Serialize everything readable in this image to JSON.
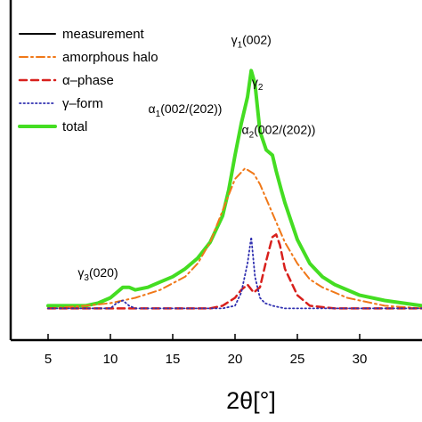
{
  "chart_data": {
    "type": "line",
    "xlabel": "2θ[°]",
    "ylabel": "",
    "xlim": [
      2,
      35
    ],
    "ylim": [
      -0.12,
      1.1
    ],
    "xticks": [
      5,
      10,
      15,
      20,
      25,
      30
    ],
    "xtick_labels": [
      "5",
      "10",
      "15",
      "20",
      "25",
      "30"
    ],
    "grid": false,
    "legend_position": "top-left",
    "legend": [
      {
        "label": "measurement",
        "color": "#000000",
        "style": "solid"
      },
      {
        "label": "amorphous halo",
        "color": "#f07818",
        "style": "dashdot"
      },
      {
        "label": "α–phase",
        "color": "#d8201c",
        "style": "dashed"
      },
      {
        "label": "γ–form",
        "color": "#3030b0",
        "style": "dotted"
      },
      {
        "label": "total",
        "color": "#44dd22",
        "style": "solid"
      }
    ],
    "annotations": [
      {
        "text": "γ1(002)",
        "main": "γ",
        "sub": "1",
        "rest": "(002)",
        "x": 21.3,
        "y": 1.0
      },
      {
        "text": "γ2",
        "main": "γ",
        "sub": "2",
        "rest": "",
        "x": 21.8,
        "y": 0.84
      },
      {
        "text": "α1(002/(202))",
        "main": "α",
        "sub": "1",
        "rest": "(002/(202))",
        "x": 16.0,
        "y": 0.74
      },
      {
        "text": "α2(002/(202))",
        "main": "α",
        "sub": "2",
        "rest": "(002/(202))",
        "x": 23.5,
        "y": 0.66
      },
      {
        "text": "γ3(020)",
        "main": "γ",
        "sub": "3",
        "rest": "(020)",
        "x": 9.0,
        "y": 0.12
      }
    ],
    "series": [
      {
        "name": "measurement",
        "x": [
          5,
          8,
          9,
          10,
          10.5,
          11,
          11.5,
          12,
          13,
          14,
          15,
          16,
          17,
          18,
          19,
          19.5,
          20,
          20.5,
          21,
          21.3,
          21.6,
          22,
          22.5,
          23,
          23.3,
          23.7,
          24,
          24.5,
          25,
          26,
          27,
          28,
          29,
          30,
          32,
          35
        ],
        "y": [
          0.01,
          0.01,
          0.02,
          0.04,
          0.06,
          0.08,
          0.08,
          0.07,
          0.08,
          0.1,
          0.12,
          0.15,
          0.19,
          0.25,
          0.35,
          0.45,
          0.58,
          0.7,
          0.8,
          0.9,
          0.85,
          0.67,
          0.6,
          0.58,
          0.52,
          0.45,
          0.4,
          0.33,
          0.26,
          0.17,
          0.12,
          0.09,
          0.07,
          0.05,
          0.03,
          0.01
        ]
      },
      {
        "name": "amorphous halo",
        "x": [
          5,
          8,
          10,
          12,
          14,
          16,
          17,
          18,
          19,
          20,
          20.8,
          21.5,
          22,
          23,
          24,
          25,
          26,
          27,
          28,
          29,
          30,
          32,
          35
        ],
        "y": [
          0.0,
          0.01,
          0.02,
          0.04,
          0.07,
          0.12,
          0.17,
          0.25,
          0.37,
          0.49,
          0.53,
          0.51,
          0.47,
          0.36,
          0.25,
          0.17,
          0.11,
          0.08,
          0.06,
          0.04,
          0.03,
          0.01,
          0.0
        ]
      },
      {
        "name": "α–phase",
        "x": [
          5,
          10,
          15,
          18,
          19,
          20,
          20.5,
          21,
          21.5,
          22,
          22.5,
          23,
          23.3,
          23.6,
          24,
          25,
          26,
          28,
          35
        ],
        "y": [
          0.0,
          0.0,
          0.0,
          0.0,
          0.01,
          0.04,
          0.07,
          0.09,
          0.06,
          0.08,
          0.18,
          0.27,
          0.28,
          0.24,
          0.15,
          0.05,
          0.01,
          0.0,
          0.0
        ]
      },
      {
        "name": "γ–form",
        "x": [
          5,
          10,
          10.5,
          11,
          11.5,
          12,
          15,
          19,
          20,
          20.5,
          21,
          21.3,
          21.6,
          22,
          22.4,
          23,
          24,
          26,
          35
        ],
        "y": [
          0.0,
          0.0,
          0.02,
          0.03,
          0.01,
          0.0,
          0.0,
          0.0,
          0.01,
          0.06,
          0.17,
          0.27,
          0.12,
          0.04,
          0.02,
          0.01,
          0.0,
          0.0,
          0.0
        ]
      },
      {
        "name": "total",
        "x": [
          5,
          8,
          9,
          10,
          10.5,
          11,
          11.5,
          12,
          13,
          14,
          15,
          16,
          17,
          18,
          19,
          19.5,
          20,
          20.5,
          21,
          21.3,
          21.6,
          22,
          22.5,
          23,
          23.3,
          23.7,
          24,
          24.5,
          25,
          26,
          27,
          28,
          29,
          30,
          32,
          35
        ],
        "y": [
          0.01,
          0.01,
          0.02,
          0.04,
          0.06,
          0.08,
          0.08,
          0.07,
          0.08,
          0.1,
          0.12,
          0.15,
          0.19,
          0.25,
          0.35,
          0.45,
          0.58,
          0.7,
          0.8,
          0.9,
          0.85,
          0.67,
          0.6,
          0.58,
          0.52,
          0.45,
          0.4,
          0.33,
          0.26,
          0.17,
          0.12,
          0.09,
          0.07,
          0.05,
          0.03,
          0.01
        ]
      }
    ]
  }
}
